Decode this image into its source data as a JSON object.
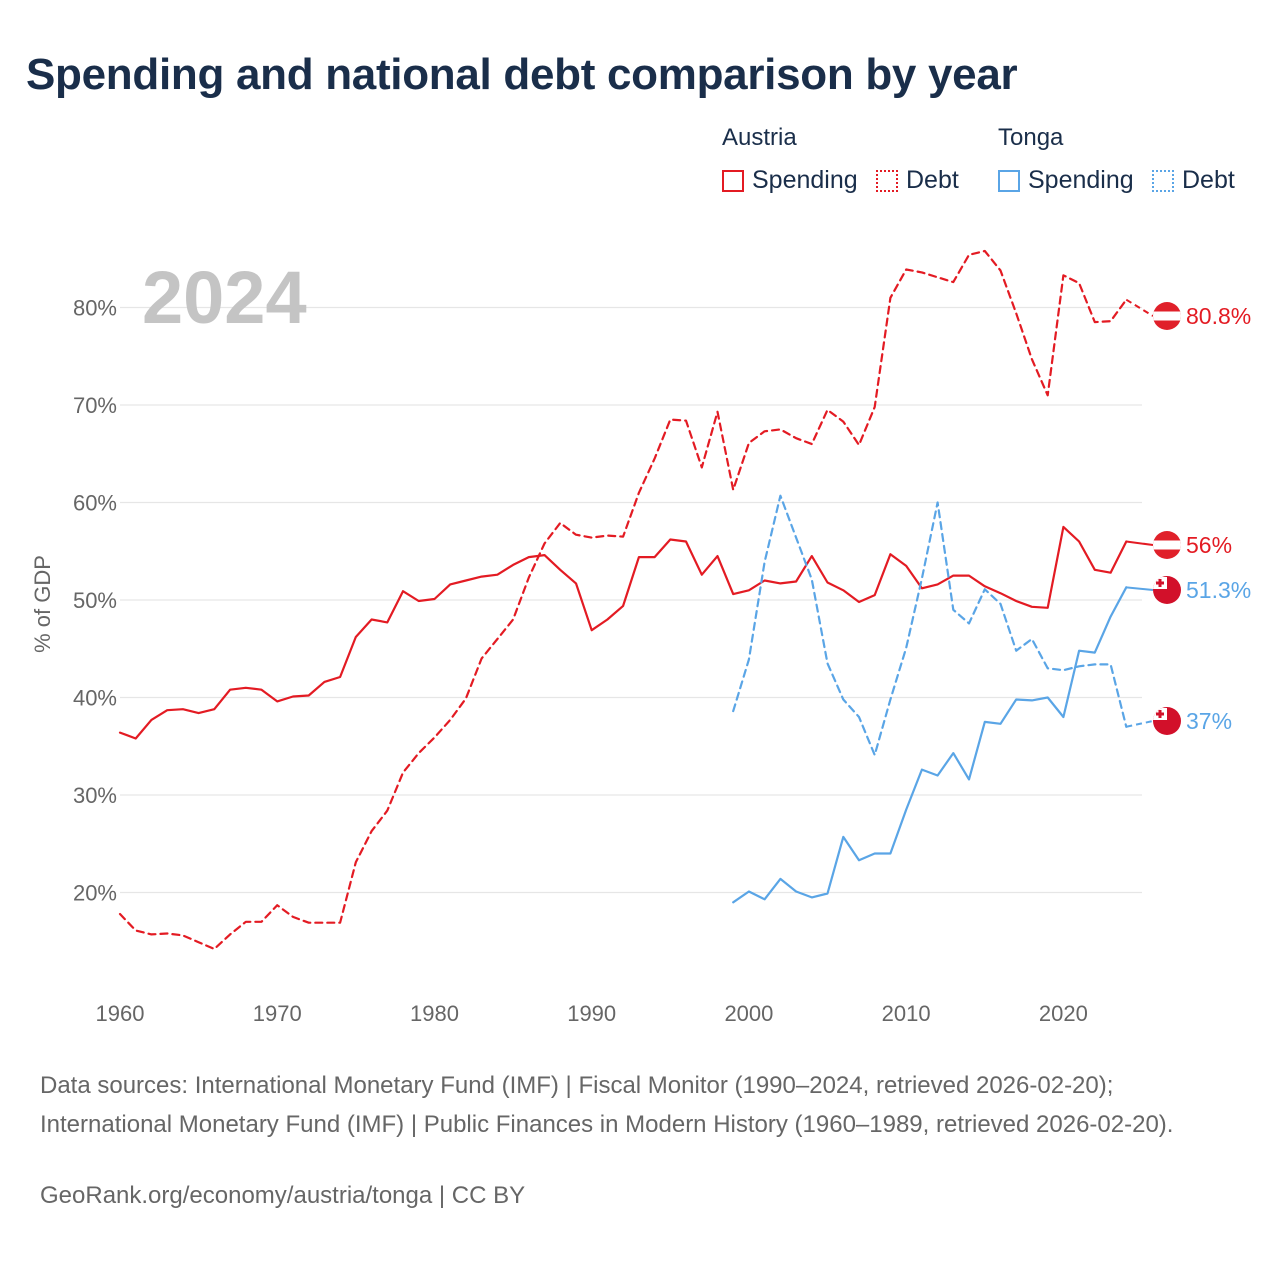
{
  "title": "Spending and national debt comparison by year",
  "legend": {
    "groups": [
      {
        "name": "Austria",
        "items": [
          {
            "label": "Spending",
            "style": "solid",
            "color": "#e31b23"
          },
          {
            "label": "Debt",
            "style": "dotted",
            "color": "#e31b23"
          }
        ]
      },
      {
        "name": "Tonga",
        "items": [
          {
            "label": "Spending",
            "style": "solid",
            "color": "#5aa5e6"
          },
          {
            "label": "Debt",
            "style": "dotted",
            "color": "#5aa5e6"
          }
        ]
      }
    ]
  },
  "chart_data": {
    "type": "line",
    "year_label": "2024",
    "ylabel": "% of GDP",
    "xlim": [
      1960,
      2025
    ],
    "ylim": [
      10,
      86
    ],
    "yticks": [
      20,
      30,
      40,
      50,
      60,
      70,
      80
    ],
    "ytick_labels": [
      "20%",
      "30%",
      "40%",
      "50%",
      "60%",
      "70%",
      "80%"
    ],
    "xticks": [
      1960,
      1970,
      1980,
      1990,
      2000,
      2010,
      2020
    ],
    "xtick_labels": [
      "1960",
      "1970",
      "1980",
      "1990",
      "2000",
      "2010",
      "2020"
    ],
    "series": [
      {
        "name": "Austria Spending",
        "country": "Austria",
        "measure": "Spending",
        "color": "#e31b23",
        "dash": false,
        "end_label": "56%",
        "x": [
          1960,
          1961,
          1962,
          1963,
          1964,
          1965,
          1966,
          1967,
          1968,
          1969,
          1970,
          1971,
          1972,
          1973,
          1974,
          1975,
          1976,
          1977,
          1978,
          1979,
          1980,
          1981,
          1982,
          1983,
          1984,
          1985,
          1986,
          1987,
          1988,
          1989,
          1990,
          1991,
          1992,
          1993,
          1994,
          1995,
          1996,
          1997,
          1998,
          1999,
          2000,
          2001,
          2002,
          2003,
          2004,
          2005,
          2006,
          2007,
          2008,
          2009,
          2010,
          2011,
          2012,
          2013,
          2014,
          2015,
          2016,
          2017,
          2018,
          2019,
          2020,
          2021,
          2022,
          2023,
          2024
        ],
        "y": [
          36.4,
          35.8,
          37.7,
          38.7,
          38.8,
          38.4,
          38.8,
          40.8,
          41.0,
          40.8,
          39.6,
          40.1,
          40.2,
          41.6,
          42.1,
          46.2,
          48.0,
          47.7,
          50.9,
          49.9,
          50.1,
          51.6,
          52.0,
          52.4,
          52.6,
          53.6,
          54.4,
          54.6,
          53.1,
          51.7,
          46.9,
          48.0,
          49.4,
          54.4,
          54.4,
          56.2,
          56.0,
          52.6,
          54.5,
          50.6,
          51.0,
          52.0,
          51.7,
          51.9,
          54.5,
          51.8,
          51.0,
          49.8,
          50.5,
          54.7,
          53.5,
          51.2,
          51.6,
          52.5,
          52.5,
          51.4,
          50.7,
          49.9,
          49.3,
          49.2,
          57.5,
          56.0,
          53.1,
          52.8,
          56.0
        ]
      },
      {
        "name": "Austria Debt",
        "country": "Austria",
        "measure": "Debt",
        "color": "#e31b23",
        "dash": true,
        "end_label": "80.8%",
        "x": [
          1960,
          1961,
          1962,
          1963,
          1964,
          1965,
          1966,
          1967,
          1968,
          1969,
          1970,
          1971,
          1972,
          1973,
          1974,
          1975,
          1976,
          1977,
          1978,
          1979,
          1980,
          1981,
          1982,
          1983,
          1984,
          1985,
          1986,
          1987,
          1988,
          1989,
          1990,
          1991,
          1992,
          1993,
          1994,
          1995,
          1996,
          1997,
          1998,
          1999,
          2000,
          2001,
          2002,
          2003,
          2004,
          2005,
          2006,
          2007,
          2008,
          2009,
          2010,
          2011,
          2012,
          2013,
          2014,
          2015,
          2016,
          2017,
          2018,
          2019,
          2020,
          2021,
          2022,
          2023,
          2024
        ],
        "y": [
          17.8,
          16.1,
          15.7,
          15.8,
          15.6,
          14.9,
          14.2,
          15.7,
          17.0,
          17.0,
          18.7,
          17.5,
          16.9,
          16.9,
          16.9,
          23.1,
          26.3,
          28.4,
          32.3,
          34.3,
          35.9,
          37.7,
          39.9,
          44.0,
          46.0,
          48.0,
          52.3,
          55.8,
          57.9,
          56.7,
          56.4,
          56.6,
          56.5,
          61.0,
          64.5,
          68.5,
          68.4,
          63.6,
          69.3,
          61.3,
          66.1,
          67.3,
          67.5,
          66.6,
          66.0,
          69.5,
          68.3,
          65.9,
          69.8,
          81.0,
          83.9,
          83.6,
          83.1,
          82.6,
          85.4,
          85.8,
          83.8,
          79.4,
          74.7,
          71.0,
          83.3,
          82.5,
          78.5,
          78.6,
          80.8
        ]
      },
      {
        "name": "Tonga Spending",
        "country": "Tonga",
        "measure": "Spending",
        "color": "#5aa5e6",
        "dash": false,
        "end_label": "51.3%",
        "x": [
          1999,
          2000,
          2001,
          2002,
          2003,
          2004,
          2005,
          2006,
          2007,
          2008,
          2009,
          2010,
          2011,
          2012,
          2013,
          2014,
          2015,
          2016,
          2017,
          2018,
          2019,
          2020,
          2021,
          2022,
          2023,
          2024
        ],
        "y": [
          19.0,
          20.1,
          19.3,
          21.4,
          20.1,
          19.5,
          19.9,
          25.7,
          23.3,
          24.0,
          24.0,
          28.5,
          32.6,
          32.0,
          34.3,
          31.6,
          37.5,
          37.3,
          39.8,
          39.7,
          40.0,
          38.0,
          44.8,
          44.6,
          48.3,
          51.3
        ]
      },
      {
        "name": "Tonga Debt",
        "country": "Tonga",
        "measure": "Debt",
        "color": "#5aa5e6",
        "dash": true,
        "end_label": "37%",
        "x": [
          1999,
          2000,
          2001,
          2002,
          2003,
          2004,
          2005,
          2006,
          2007,
          2008,
          2009,
          2010,
          2011,
          2012,
          2013,
          2014,
          2015,
          2016,
          2017,
          2018,
          2019,
          2020,
          2021,
          2022,
          2023,
          2024
        ],
        "y": [
          38.6,
          43.9,
          53.9,
          60.7,
          56.4,
          52.1,
          43.5,
          39.8,
          38.0,
          34.1,
          39.8,
          45.1,
          52.2,
          60.0,
          49.0,
          47.6,
          51.1,
          49.6,
          44.8,
          46.0,
          43.0,
          42.8,
          43.2,
          43.4,
          43.4,
          37.0
        ]
      }
    ]
  },
  "sources": {
    "text": "Data sources: International Monetary Fund (IMF) | Fiscal Monitor (1990–2024, retrieved 2026-02-20); International Monetary Fund (IMF) | Public Finances in Modern History (1960–1989, retrieved 2026-02-20).",
    "credit": "GeoRank.org/economy/austria/tonga | CC BY"
  }
}
